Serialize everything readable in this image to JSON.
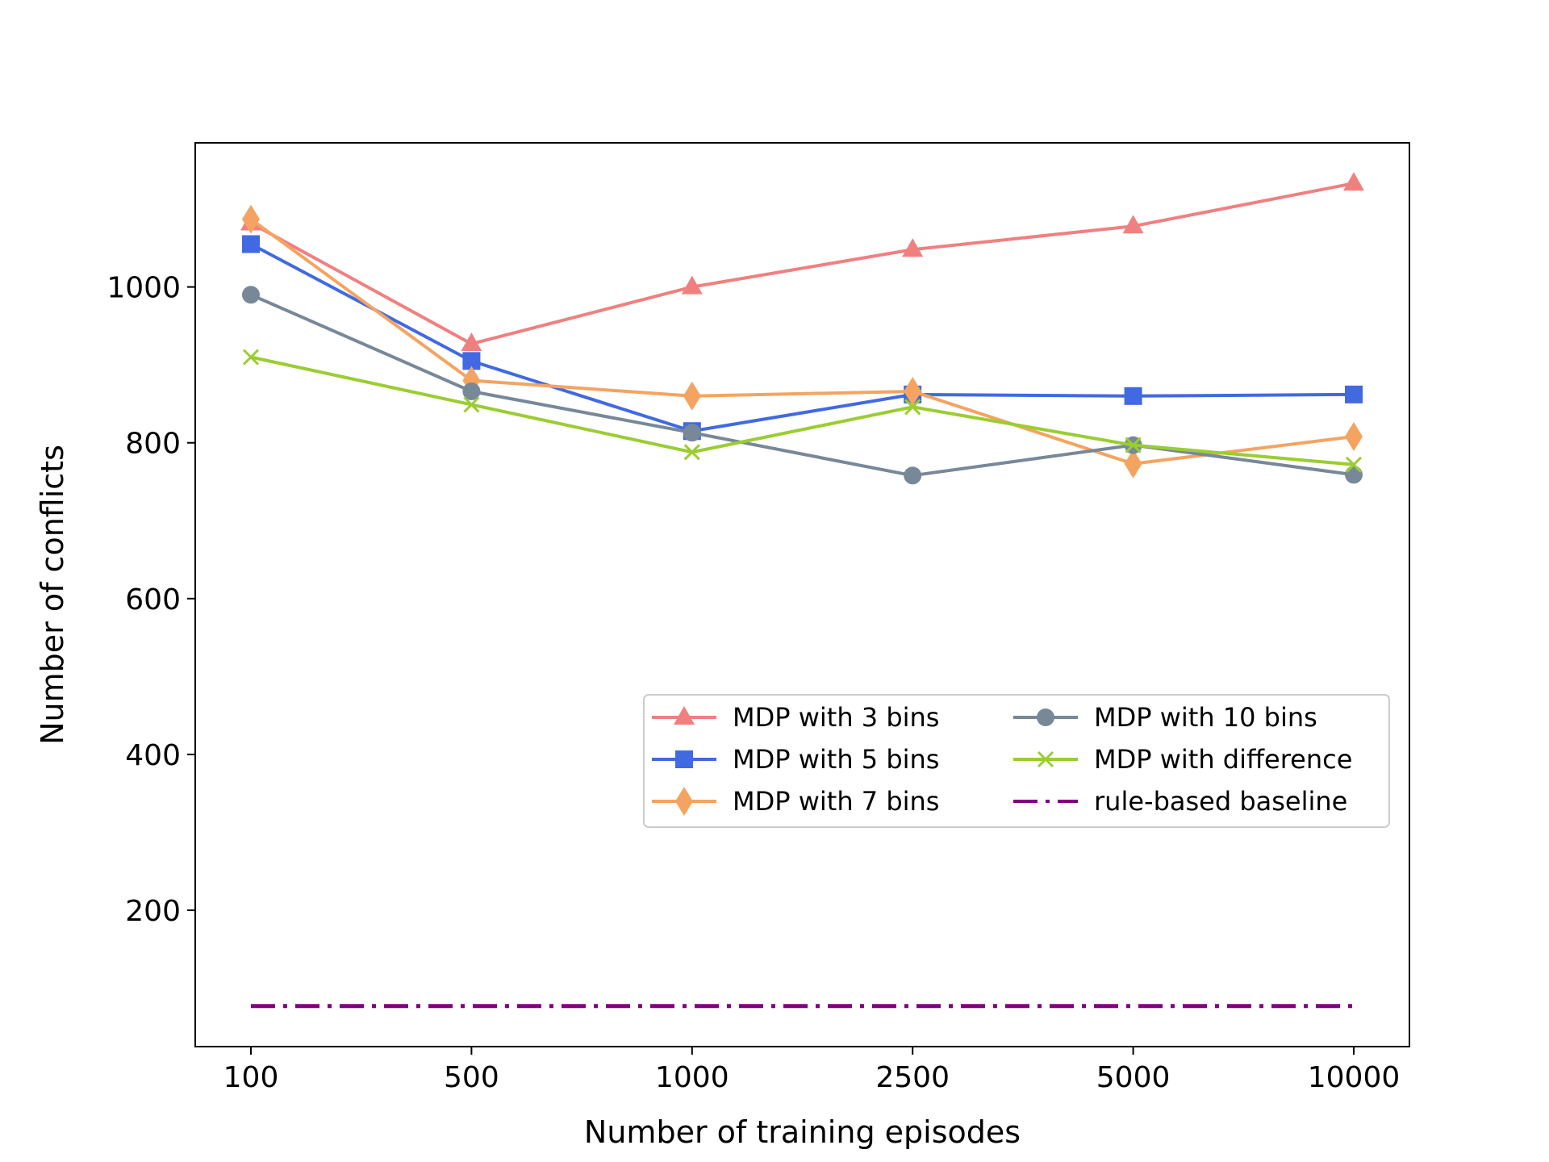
{
  "chart_data": {
    "type": "line",
    "title": "",
    "xlabel": "Number of training episodes",
    "ylabel": "Number of conflicts",
    "categories": [
      "100",
      "500",
      "1000",
      "2500",
      "5000",
      "10000"
    ],
    "yticks": [
      200,
      400,
      600,
      800,
      1000
    ],
    "ylim": [
      25,
      1185
    ],
    "grid": false,
    "legend_placement": "center-right",
    "series": [
      {
        "name": "MDP with 3 bins",
        "values": [
          1082,
          927,
          1000,
          1048,
          1078,
          1133
        ],
        "color": "#f08080",
        "marker": "triangle",
        "dash": "solid"
      },
      {
        "name": "MDP with 5 bins",
        "values": [
          1055,
          905,
          815,
          862,
          860,
          862
        ],
        "color": "#4169e1",
        "marker": "square",
        "dash": "solid"
      },
      {
        "name": "MDP with 7 bins",
        "values": [
          1087,
          880,
          860,
          866,
          773,
          808
        ],
        "color": "#f4a460",
        "marker": "diamond",
        "dash": "solid"
      },
      {
        "name": "MDP with 10 bins",
        "values": [
          990,
          866,
          813,
          758,
          797,
          759
        ],
        "color": "#778899",
        "marker": "circle",
        "dash": "solid"
      },
      {
        "name": "MDP with difference",
        "values": [
          910,
          849,
          788,
          846,
          797,
          772
        ],
        "color": "#9acd32",
        "marker": "x",
        "dash": "solid"
      },
      {
        "name": "rule-based baseline",
        "values": [
          77,
          77,
          77,
          77,
          77,
          77
        ],
        "color": "#800080",
        "marker": "none",
        "dash": "dashdot"
      }
    ]
  }
}
